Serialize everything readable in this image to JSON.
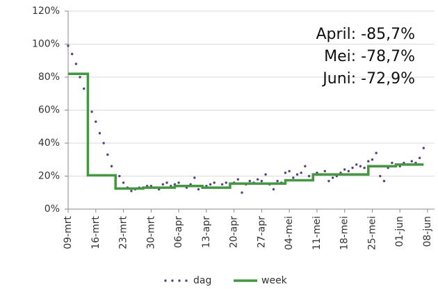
{
  "chart_data": {
    "type": "line",
    "annotations": [
      "April: -85,7%",
      "Mei: -78,7%",
      "Juni: -72,9%"
    ],
    "xlim": [
      0,
      91
    ],
    "xticks": [
      {
        "value": 0,
        "label": "09-mrt"
      },
      {
        "value": 7,
        "label": "16-mrt"
      },
      {
        "value": 14,
        "label": "23-mrt"
      },
      {
        "value": 21,
        "label": "30-mrt"
      },
      {
        "value": 28,
        "label": "06-apr"
      },
      {
        "value": 35,
        "label": "13-apr"
      },
      {
        "value": 42,
        "label": "20-apr"
      },
      {
        "value": 49,
        "label": "27-apr"
      },
      {
        "value": 56,
        "label": "04-mei"
      },
      {
        "value": 63,
        "label": "11-mei"
      },
      {
        "value": 70,
        "label": "18-mei"
      },
      {
        "value": 77,
        "label": "25-mei"
      },
      {
        "value": 84,
        "label": "01-jun"
      },
      {
        "value": 91,
        "label": "08-jun"
      }
    ],
    "ylim": [
      0,
      120
    ],
    "yticks": [
      {
        "value": 0,
        "label": "0%"
      },
      {
        "value": 20,
        "label": "20%"
      },
      {
        "value": 40,
        "label": "40%"
      },
      {
        "value": 60,
        "label": "60%"
      },
      {
        "value": 80,
        "label": "80%"
      },
      {
        "value": 100,
        "label": "100%"
      },
      {
        "value": 120,
        "label": "120%"
      }
    ],
    "grid": true,
    "series": [
      {
        "name": "dag",
        "color": "#5b3e8f",
        "style": "dots",
        "x": [
          0,
          1,
          2,
          3,
          4,
          5,
          6,
          7,
          8,
          9,
          10,
          11,
          12,
          13,
          14,
          15,
          16,
          17,
          18,
          19,
          20,
          21,
          22,
          23,
          24,
          25,
          26,
          27,
          28,
          29,
          30,
          31,
          32,
          33,
          34,
          35,
          36,
          37,
          38,
          39,
          40,
          41,
          42,
          43,
          44,
          45,
          46,
          47,
          48,
          49,
          50,
          51,
          52,
          53,
          54,
          55,
          56,
          57,
          58,
          59,
          60,
          61,
          62,
          63,
          64,
          65,
          66,
          67,
          68,
          69,
          70,
          71,
          72,
          73,
          74,
          75,
          76,
          77,
          78,
          79,
          80,
          81,
          82,
          83,
          84,
          85,
          86,
          87,
          88,
          89,
          90
        ],
        "values": [
          99,
          94,
          88,
          80,
          73,
          66,
          59,
          53,
          46,
          40,
          33,
          26,
          20,
          20,
          16,
          13,
          11,
          12,
          13,
          13,
          14,
          14,
          13,
          12,
          15,
          16,
          14,
          15,
          16,
          14,
          13,
          15,
          19,
          12,
          13,
          14,
          15,
          16,
          13,
          15,
          16,
          15,
          16,
          18,
          10,
          15,
          17,
          16,
          18,
          17,
          21,
          15,
          12,
          17,
          16,
          22,
          23,
          19,
          21,
          22,
          26,
          20,
          21,
          22,
          21,
          23,
          17,
          19,
          20,
          22,
          24,
          23,
          25,
          27,
          26,
          25,
          29,
          30,
          34,
          20,
          17,
          25,
          28,
          27,
          26,
          28,
          27,
          29,
          28,
          31,
          37
        ]
      },
      {
        "name": "week",
        "color": "#3f9a3a",
        "style": "step",
        "x": [
          0,
          5,
          12,
          19,
          27,
          34,
          41,
          48,
          55,
          62,
          69,
          76,
          83,
          90
        ],
        "values": [
          82,
          20.5,
          12.5,
          13,
          14,
          13,
          15.5,
          15.5,
          17.5,
          21,
          21,
          26,
          27,
          27
        ]
      }
    ]
  }
}
